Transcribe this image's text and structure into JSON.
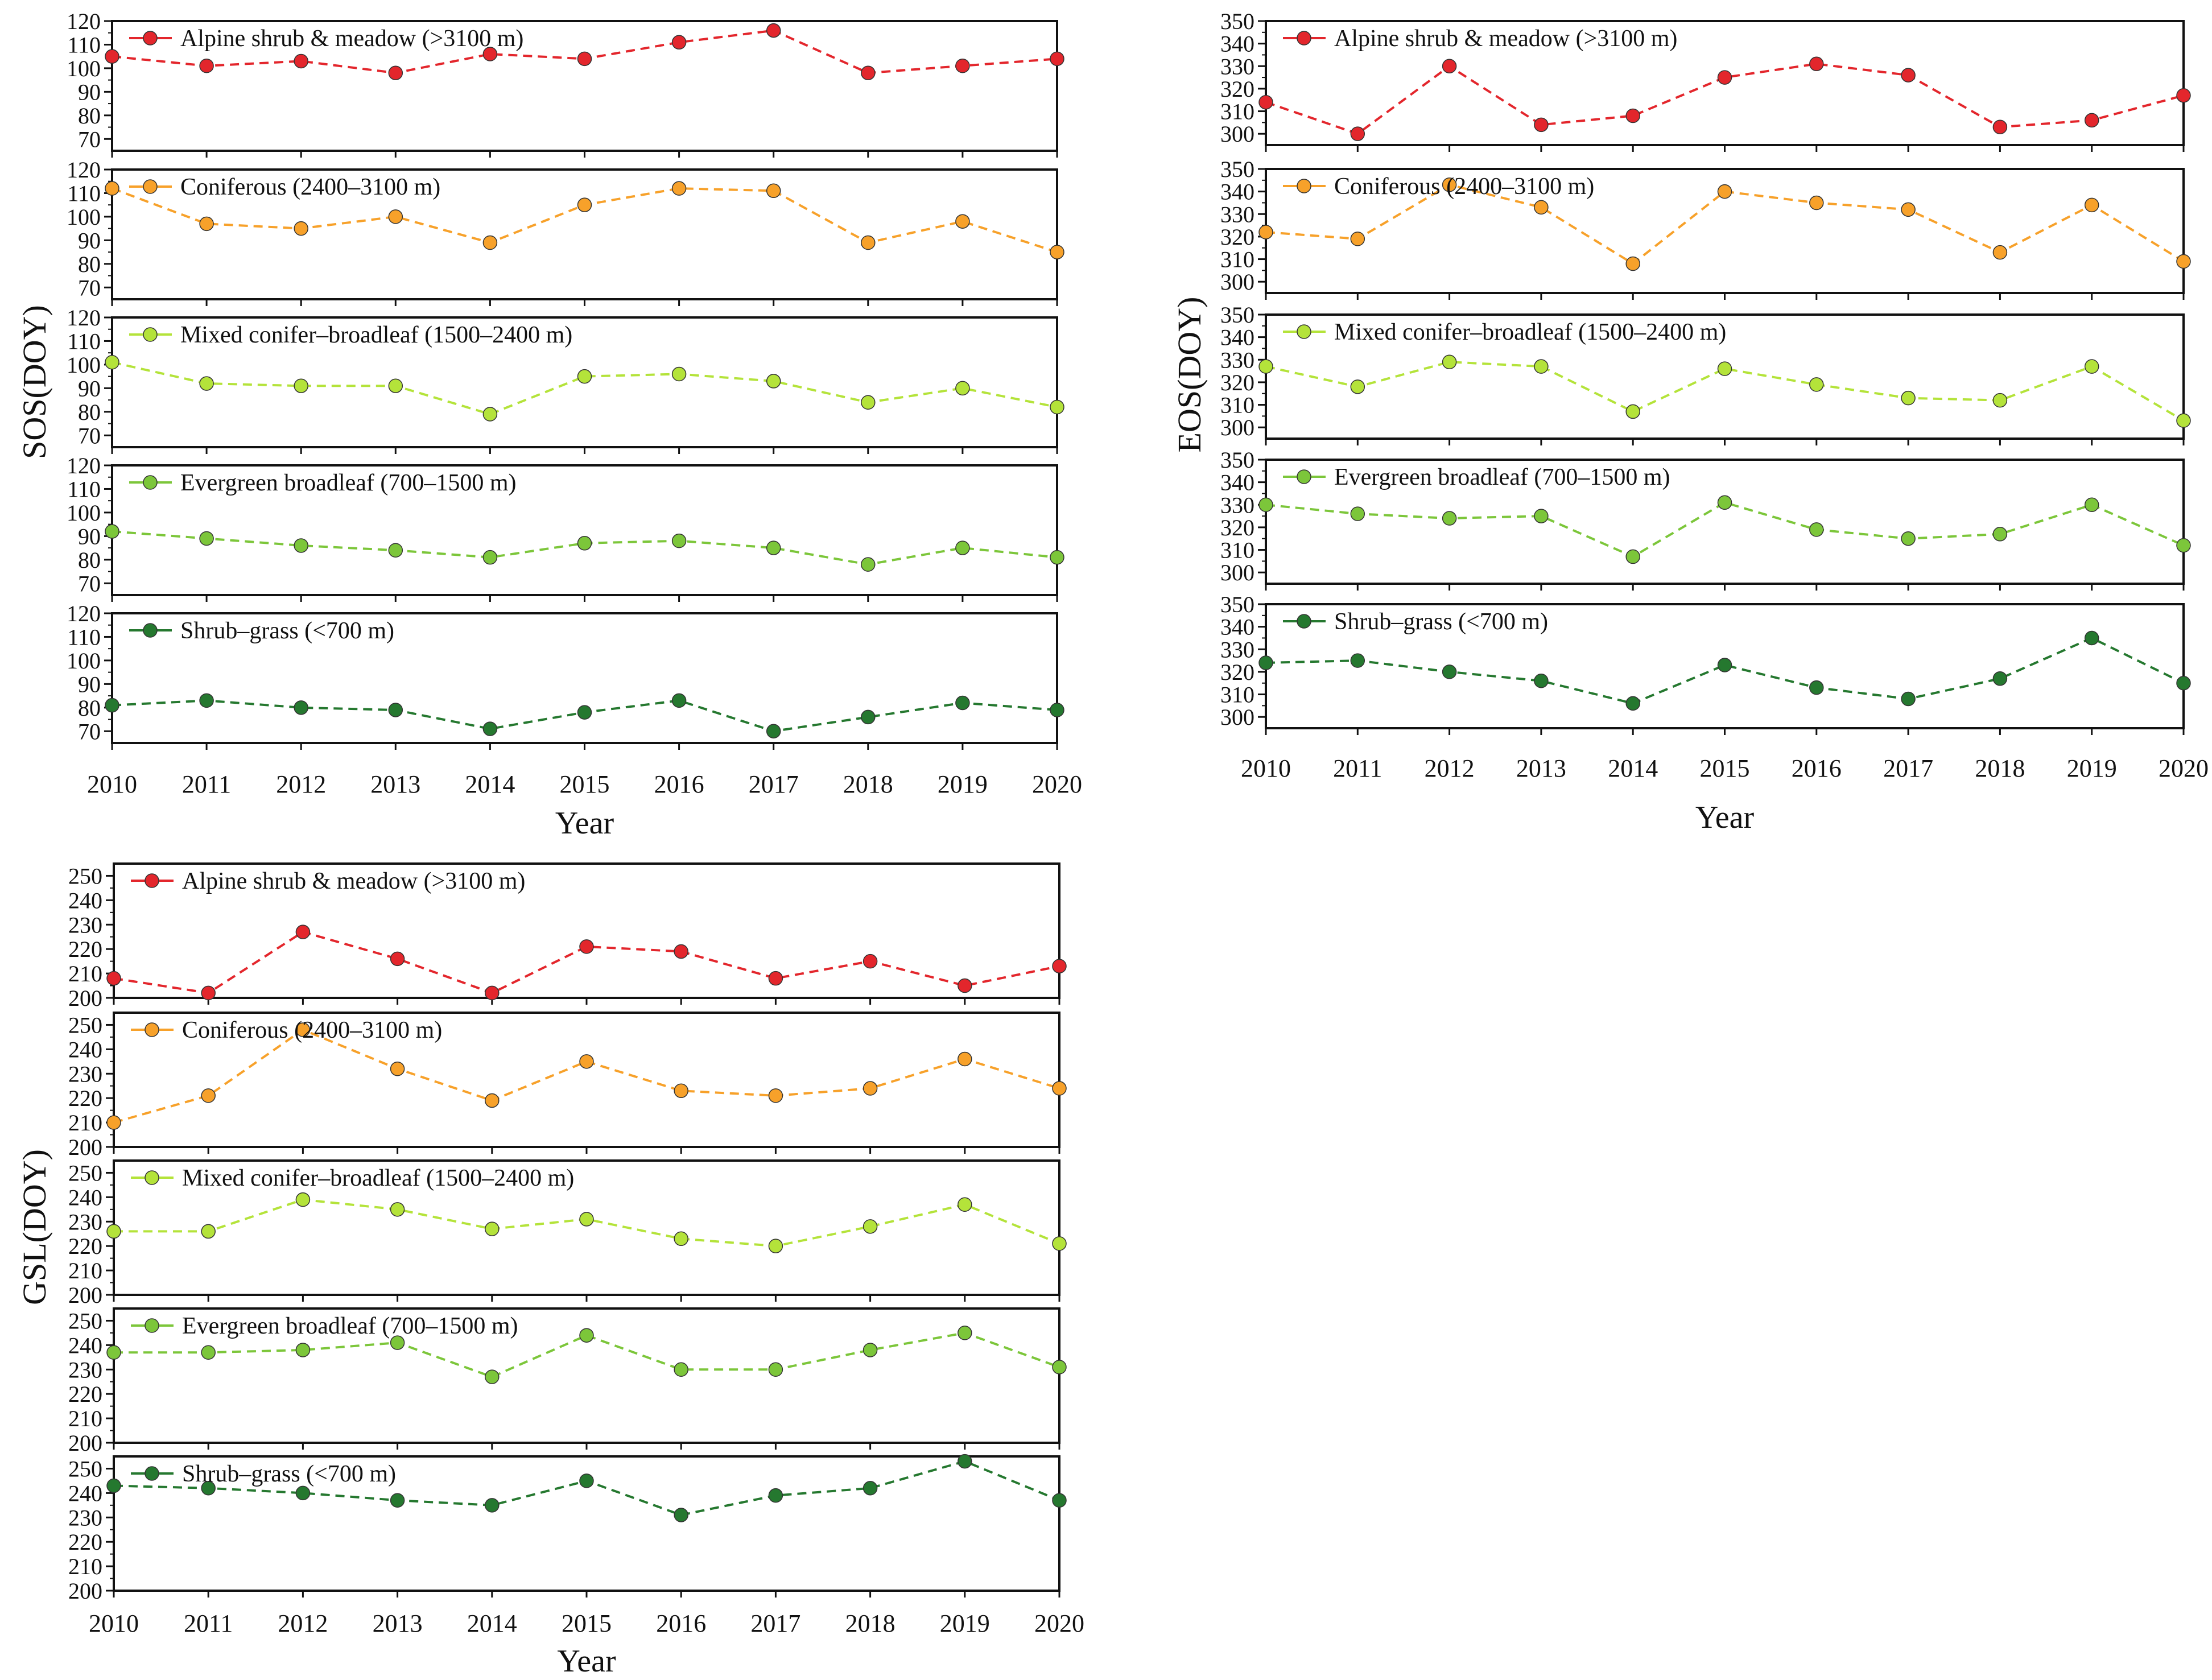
{
  "chart_data": [
    {
      "type": "line",
      "ylabel": "SOS(DOY)",
      "xlabel": "Year",
      "x": [
        2010,
        2011,
        2012,
        2013,
        2014,
        2015,
        2016,
        2017,
        2018,
        2019,
        2020
      ],
      "ylim": [
        65,
        120
      ],
      "yticks": [
        70,
        80,
        90,
        100,
        110,
        120
      ],
      "grid": false,
      "legend_position": "top-left",
      "series": [
        {
          "name": "Alpine shrub & meadow (>3100 m)",
          "color": "#e3262c",
          "values": [
            105,
            101,
            103,
            98,
            106,
            104,
            111,
            116,
            98,
            101,
            104
          ]
        },
        {
          "name": "Coniferous (2400–3100 m)",
          "color": "#f7a12a",
          "values": [
            112,
            97,
            95,
            100,
            89,
            105,
            112,
            111,
            89,
            98,
            85
          ]
        },
        {
          "name": "Mixed conifer–broadleaf (1500–2400 m)",
          "color": "#b4e33a",
          "values": [
            101,
            92,
            91,
            91,
            79,
            95,
            96,
            93,
            84,
            90,
            82
          ]
        },
        {
          "name": "Evergreen broadleaf (700–1500 m)",
          "color": "#7cc63a",
          "values": [
            92,
            89,
            86,
            84,
            81,
            87,
            88,
            85,
            78,
            85,
            81
          ]
        },
        {
          "name": "Shrub–grass (<700 m)",
          "color": "#25782f",
          "values": [
            81,
            83,
            80,
            79,
            71,
            78,
            83,
            70,
            76,
            82,
            79
          ]
        }
      ]
    },
    {
      "type": "line",
      "ylabel": "EOS(DOY)",
      "xlabel": "Year",
      "x": [
        2010,
        2011,
        2012,
        2013,
        2014,
        2015,
        2016,
        2017,
        2018,
        2019,
        2020
      ],
      "ylim": [
        295,
        350
      ],
      "yticks": [
        300,
        310,
        320,
        330,
        340,
        350
      ],
      "grid": false,
      "legend_position": "top-left",
      "series": [
        {
          "name": "Alpine shrub & meadow (>3100 m)",
          "color": "#e3262c",
          "values": [
            314,
            300,
            330,
            304,
            308,
            325,
            331,
            326,
            303,
            306,
            317
          ]
        },
        {
          "name": "Coniferous (2400–3100 m)",
          "color": "#f7a12a",
          "values": [
            322,
            319,
            343,
            333,
            308,
            340,
            335,
            332,
            313,
            334,
            309
          ]
        },
        {
          "name": "Mixed conifer–broadleaf (1500–2400 m)",
          "color": "#b4e33a",
          "values": [
            327,
            318,
            329,
            327,
            307,
            326,
            319,
            313,
            312,
            327,
            303
          ]
        },
        {
          "name": "Evergreen broadleaf (700–1500 m)",
          "color": "#7cc63a",
          "values": [
            330,
            326,
            324,
            325,
            307,
            331,
            319,
            315,
            317,
            330,
            312
          ]
        },
        {
          "name": "Shrub–grass (<700 m)",
          "color": "#25782f",
          "values": [
            324,
            325,
            320,
            316,
            306,
            323,
            313,
            308,
            317,
            335,
            315
          ]
        }
      ]
    },
    {
      "type": "line",
      "ylabel": "GSL(DOY)",
      "xlabel": "Year",
      "x": [
        2010,
        2011,
        2012,
        2013,
        2014,
        2015,
        2016,
        2017,
        2018,
        2019,
        2020
      ],
      "ylim": [
        200,
        255
      ],
      "yticks": [
        200,
        210,
        220,
        230,
        240,
        250
      ],
      "grid": false,
      "legend_position": "top-left",
      "series": [
        {
          "name": "Alpine shrub & meadow (>3100 m)",
          "color": "#e3262c",
          "values": [
            208,
            202,
            227,
            216,
            202,
            221,
            219,
            208,
            215,
            205,
            213
          ]
        },
        {
          "name": "Coniferous (2400–3100 m)",
          "color": "#f7a12a",
          "values": [
            210,
            221,
            248,
            232,
            219,
            235,
            223,
            221,
            224,
            236,
            224
          ]
        },
        {
          "name": "Mixed conifer–broadleaf (1500–2400 m)",
          "color": "#b4e33a",
          "values": [
            226,
            226,
            239,
            235,
            227,
            231,
            223,
            220,
            228,
            237,
            221
          ]
        },
        {
          "name": "Evergreen broadleaf (700–1500 m)",
          "color": "#7cc63a",
          "values": [
            237,
            237,
            238,
            241,
            227,
            244,
            230,
            230,
            238,
            245,
            231
          ]
        },
        {
          "name": "Shrub–grass (<700 m)",
          "color": "#25782f",
          "values": [
            243,
            242,
            240,
            237,
            235,
            245,
            231,
            239,
            242,
            253,
            237
          ]
        }
      ]
    }
  ]
}
